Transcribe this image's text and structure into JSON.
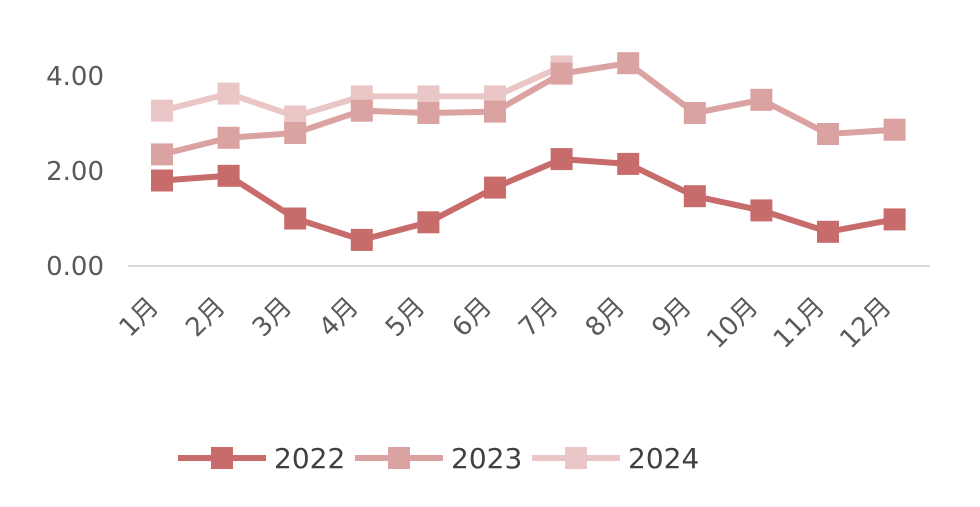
{
  "chart_data": {
    "type": "line",
    "categories": [
      "1月",
      "2月",
      "3月",
      "4月",
      "5月",
      "6月",
      "7月",
      "8月",
      "9月",
      "10月",
      "11月",
      "12月"
    ],
    "series": [
      {
        "name": "2022",
        "color": "#c86b6b",
        "values": [
          1.8,
          1.9,
          1.0,
          0.55,
          0.92,
          1.65,
          2.25,
          2.15,
          1.47,
          1.17,
          0.72,
          0.98
        ]
      },
      {
        "name": "2023",
        "color": "#dba2a2",
        "values": [
          2.35,
          2.7,
          2.8,
          3.27,
          3.22,
          3.25,
          4.05,
          4.27,
          3.22,
          3.5,
          2.78,
          2.87
        ]
      },
      {
        "name": "2024",
        "color": "#ebc6c6",
        "values": [
          3.27,
          3.63,
          3.15,
          3.57,
          3.57,
          3.57,
          4.2,
          null,
          null,
          null,
          null,
          null
        ]
      }
    ],
    "yticks": [
      "0.00",
      "2.00",
      "4.00"
    ],
    "ylim": [
      0,
      4.6
    ],
    "legend_position": "bottom",
    "grid": false
  }
}
